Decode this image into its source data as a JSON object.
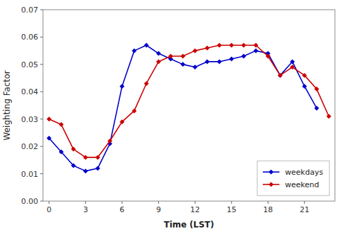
{
  "chart_data": {
    "type": "line",
    "xlabel": "Time (LST)",
    "ylabel": "Weighting Factor",
    "series": [
      {
        "name": "weekdays",
        "color": "#0000CC",
        "marker": "diamond",
        "line_style": "solid",
        "x": [
          0,
          1,
          2,
          3,
          4,
          5,
          6,
          7,
          8,
          9,
          10,
          11,
          12,
          13,
          14,
          15,
          16,
          17,
          18,
          19,
          20,
          21,
          22
        ],
        "values": [
          0.023,
          0.018,
          0.013,
          0.011,
          0.012,
          0.021,
          0.042,
          0.055,
          0.057,
          0.054,
          0.052,
          0.05,
          0.049,
          0.051,
          0.051,
          0.052,
          0.053,
          0.055,
          0.054,
          0.046,
          0.051,
          0.042,
          0.034
        ]
      },
      {
        "name": "weekend",
        "color": "#CC0000",
        "marker": "diamond",
        "line_style": "solid",
        "x": [
          0,
          1,
          2,
          3,
          4,
          5,
          6,
          7,
          8,
          9,
          10,
          11,
          12,
          13,
          14,
          15,
          16,
          17,
          18,
          19,
          20,
          21,
          22,
          23
        ],
        "values": [
          0.03,
          0.028,
          0.019,
          0.016,
          0.016,
          0.022,
          0.029,
          0.033,
          0.043,
          0.051,
          0.053,
          0.053,
          0.055,
          0.056,
          0.057,
          0.057,
          0.057,
          0.057,
          0.053,
          0.046,
          0.049,
          0.046,
          0.041,
          0.031
        ]
      }
    ],
    "xlim": [
      -0.5,
      23.5
    ],
    "ylim": [
      0,
      0.07
    ],
    "xticks": [
      0,
      3,
      6,
      9,
      12,
      15,
      18,
      21
    ],
    "yticks": [
      {
        "value": 0,
        "label": "0.00"
      },
      {
        "value": 0.01,
        "label": "0.01"
      },
      {
        "value": 0.02,
        "label": "0.02"
      },
      {
        "value": 0.03,
        "label": "0.03"
      },
      {
        "value": 0.04,
        "label": "0.04"
      },
      {
        "value": 0.05,
        "label": "0.05"
      },
      {
        "value": 0.06,
        "label": "0.06"
      },
      {
        "value": 0.07,
        "label": "0.07"
      }
    ],
    "grid": false,
    "legend": "lower right"
  }
}
